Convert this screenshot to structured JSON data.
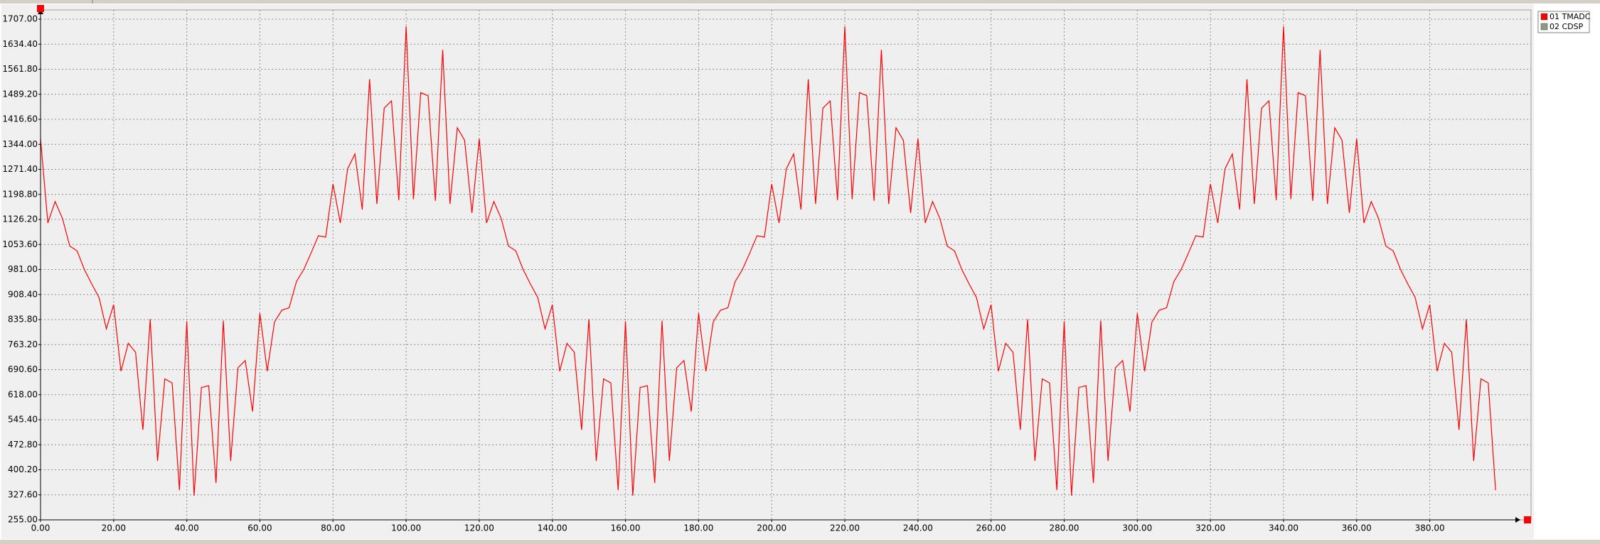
{
  "chart_data": {
    "type": "line",
    "x": [
      0,
      2,
      4,
      6,
      8,
      10,
      12,
      14,
      16,
      18,
      20,
      22,
      24,
      26,
      28,
      30,
      32,
      34,
      36,
      38,
      40,
      42,
      44,
      46,
      48,
      50,
      52,
      54,
      56,
      58,
      60,
      62,
      64,
      66,
      68,
      70,
      72,
      74,
      76,
      78,
      80,
      82,
      84,
      86,
      88,
      90,
      92,
      94,
      96,
      98,
      100,
      102,
      104,
      106,
      108,
      110,
      112,
      114,
      116,
      118,
      120,
      122,
      124,
      126,
      128,
      130,
      132,
      134,
      136,
      138,
      140,
      142,
      144,
      146,
      148,
      150,
      152,
      154,
      156,
      158,
      160,
      162,
      164,
      166,
      168,
      170,
      172,
      174,
      176,
      178,
      180,
      182,
      184,
      186,
      188,
      190,
      192,
      194,
      196,
      198,
      200,
      202,
      204,
      206,
      208,
      210,
      212,
      214,
      216,
      218,
      220,
      222,
      224,
      226,
      228,
      230,
      232,
      234,
      236,
      238,
      240,
      242,
      244,
      246,
      248,
      250,
      252,
      254,
      256,
      258,
      260,
      262,
      264,
      266,
      268,
      270,
      272,
      274,
      276,
      278,
      280,
      282,
      284,
      286,
      288,
      290,
      292,
      294,
      296,
      298,
      300,
      302,
      304,
      306,
      308,
      310,
      312,
      314,
      316,
      318,
      320,
      322,
      324,
      326,
      328,
      330,
      332,
      334,
      336,
      338,
      340,
      342,
      344,
      346,
      348,
      350,
      352,
      354,
      356,
      358,
      360,
      362,
      364,
      366,
      368,
      370,
      372,
      374,
      376,
      378,
      380,
      382,
      384,
      386,
      388,
      390,
      392,
      394,
      396,
      398
    ],
    "series": [
      {
        "name": "01 TMADC",
        "color": "#ff0000",
        "values": [
          1360,
          1116,
          1178,
          1129,
          1049,
          1035,
          981,
          939,
          900,
          809,
          879,
          686,
          767,
          741,
          516,
          837,
          426,
          664,
          652,
          341,
          831,
          325,
          639,
          644,
          362,
          833,
          426,
          696,
          717,
          569,
          854,
          686,
          829,
          863,
          870,
          946,
          981,
          1029,
          1079,
          1075,
          1229,
          1116,
          1273,
          1316,
          1155,
          1533,
          1171,
          1449,
          1470,
          1182,
          1686,
          1185,
          1494,
          1485,
          1180,
          1618,
          1171,
          1392,
          1356,
          1145,
          1360,
          1116,
          1178,
          1129,
          1049,
          1035,
          981,
          939,
          900,
          809,
          879,
          686,
          767,
          741,
          516,
          837,
          426,
          664,
          652,
          341,
          831,
          325,
          639,
          644,
          362,
          833,
          426,
          696,
          717,
          569,
          854,
          686,
          829,
          863,
          870,
          946,
          981,
          1029,
          1079,
          1075,
          1229,
          1116,
          1273,
          1316,
          1155,
          1533,
          1171,
          1449,
          1470,
          1182,
          1686,
          1185,
          1494,
          1485,
          1180,
          1618,
          1171,
          1392,
          1356,
          1145,
          1360,
          1116,
          1178,
          1129,
          1049,
          1035,
          981,
          939,
          900,
          809,
          879,
          686,
          767,
          741,
          516,
          837,
          426,
          664,
          652,
          341,
          831,
          325,
          639,
          644,
          362,
          833,
          426,
          696,
          717,
          569,
          854,
          686,
          829,
          863,
          870,
          946,
          981,
          1029,
          1079,
          1075,
          1229,
          1116,
          1273,
          1316,
          1155,
          1533,
          1171,
          1449,
          1470,
          1182,
          1686,
          1185,
          1494,
          1485,
          1180,
          1618,
          1171,
          1392,
          1356,
          1145,
          1360,
          1116,
          1178,
          1129,
          1049,
          1035,
          981,
          939,
          900,
          809,
          879,
          686,
          767,
          741,
          516,
          837,
          426,
          664,
          652,
          341
        ]
      },
      {
        "name": "02 CDSP",
        "color": "#8c9c84"
      }
    ],
    "xlim": [
      0,
      404
    ],
    "ylim": [
      255,
      1707
    ],
    "xticks": [
      {
        "value": 0,
        "label": "0.00"
      },
      {
        "value": 20,
        "label": "20.00"
      },
      {
        "value": 40,
        "label": "40.00"
      },
      {
        "value": 60,
        "label": "60.00"
      },
      {
        "value": 80,
        "label": "80.00"
      },
      {
        "value": 100,
        "label": "100.00"
      },
      {
        "value": 120,
        "label": "120.00"
      },
      {
        "value": 140,
        "label": "140.00"
      },
      {
        "value": 160,
        "label": "160.00"
      },
      {
        "value": 180,
        "label": "180.00"
      },
      {
        "value": 200,
        "label": "200.00"
      },
      {
        "value": 220,
        "label": "220.00"
      },
      {
        "value": 240,
        "label": "240.00"
      },
      {
        "value": 260,
        "label": "260.00"
      },
      {
        "value": 280,
        "label": "280.00"
      },
      {
        "value": 300,
        "label": "300.00"
      },
      {
        "value": 320,
        "label": "320.00"
      },
      {
        "value": 340,
        "label": "340.00"
      },
      {
        "value": 360,
        "label": "360.00"
      },
      {
        "value": 380,
        "label": "380.00"
      }
    ],
    "yticks": [
      {
        "value": 255,
        "label": "255.00"
      },
      {
        "value": 327.6,
        "label": "327.60"
      },
      {
        "value": 400.2,
        "label": "400.20"
      },
      {
        "value": 472.8,
        "label": "472.80"
      },
      {
        "value": 545.4,
        "label": "545.40"
      },
      {
        "value": 618,
        "label": "618.00"
      },
      {
        "value": 690.6,
        "label": "690.60"
      },
      {
        "value": 763.2,
        "label": "763.20"
      },
      {
        "value": 835.8,
        "label": "835.80"
      },
      {
        "value": 908.4,
        "label": "908.40"
      },
      {
        "value": 981,
        "label": "981.00"
      },
      {
        "value": 1053.6,
        "label": "1053.60"
      },
      {
        "value": 1126.2,
        "label": "1126.20"
      },
      {
        "value": 1198.8,
        "label": "1198.80"
      },
      {
        "value": 1271.4,
        "label": "1271.40"
      },
      {
        "value": 1344,
        "label": "1344.00"
      },
      {
        "value": 1416.6,
        "label": "1416.60"
      },
      {
        "value": 1489.2,
        "label": "1489.20"
      },
      {
        "value": 1561.8,
        "label": "1561.80"
      },
      {
        "value": 1634.4,
        "label": "1634.40"
      },
      {
        "value": 1707,
        "label": "1707.00"
      }
    ],
    "grid": true
  }
}
